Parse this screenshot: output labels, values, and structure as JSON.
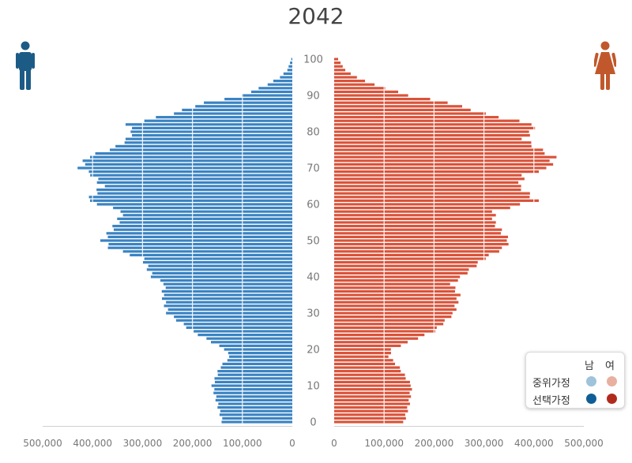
{
  "chart_data": {
    "type": "bar",
    "title": "2042",
    "orientation": "horizontal-pyramid",
    "age_axis": {
      "min": 0,
      "max": 100,
      "tick_labels": [
        "0",
        "10",
        "20",
        "30",
        "40",
        "50",
        "60",
        "70",
        "80",
        "90",
        "100"
      ]
    },
    "x_tick_labels_left": [
      "500,000",
      "400,000",
      "300,000",
      "200,000",
      "100,000",
      "0"
    ],
    "x_tick_labels_right": [
      "0",
      "100,000",
      "200,000",
      "300,000",
      "400,000",
      "500,000"
    ],
    "x_range": [
      0,
      500000
    ],
    "grid": true,
    "legend": {
      "placement": "bottom-right",
      "column_headers": [
        "남",
        "여"
      ],
      "rows": [
        {
          "label": "중위가정",
          "male_color": "#9ec3da",
          "female_color": "#e8b0a0"
        },
        {
          "label": "선택가정",
          "male_color": "#0f5e96",
          "female_color": "#b02b1d"
        }
      ]
    },
    "age_breakpoints": [
      0,
      5,
      10,
      15,
      18,
      20,
      25,
      30,
      35,
      38,
      40,
      45,
      48,
      50,
      55,
      58,
      61,
      65,
      68,
      70,
      73,
      76,
      78,
      80,
      82,
      85,
      88,
      90,
      93,
      95,
      97,
      100
    ],
    "male_breakpoints": [
      140000,
      150000,
      160000,
      145000,
      125000,
      135000,
      200000,
      250000,
      260000,
      255000,
      280000,
      300000,
      365000,
      380000,
      350000,
      340000,
      410000,
      380000,
      400000,
      425000,
      410000,
      350000,
      330000,
      320000,
      330000,
      240000,
      175000,
      100000,
      50000,
      25000,
      10000,
      2000
    ],
    "female_breakpoints": [
      140000,
      150000,
      155000,
      130000,
      110000,
      115000,
      200000,
      240000,
      250000,
      235000,
      255000,
      300000,
      340000,
      350000,
      320000,
      320000,
      405000,
      370000,
      380000,
      430000,
      440000,
      400000,
      380000,
      395000,
      400000,
      300000,
      230000,
      150000,
      80000,
      45000,
      22000,
      8000
    ],
    "series": [
      {
        "name": "남",
        "color": "#3a83c2"
      },
      {
        "name": "여",
        "color": "#d9533a"
      }
    ]
  },
  "icons": {
    "male": "male-person-icon",
    "female": "female-person-icon",
    "male_color": "#1c5b86",
    "female_color": "#c1582c"
  }
}
